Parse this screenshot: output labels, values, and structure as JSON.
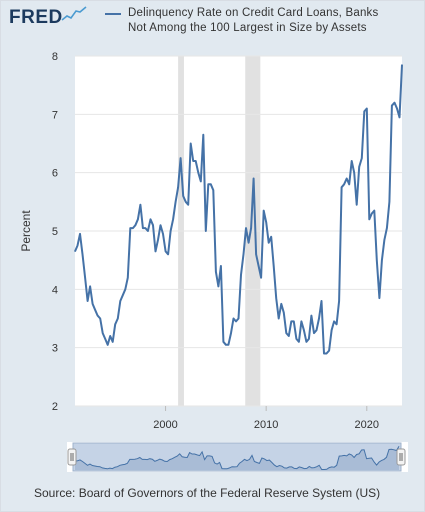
{
  "header": {
    "logo_text": "FRED",
    "legend_label_line1": "Delinquency Rate on Credit Card Loans, Banks",
    "legend_label_line2": "Not Among the 100 Largest in Size by Assets"
  },
  "footer": {
    "source": "Source: Board of Governors of the Federal Reserve System (US)"
  },
  "colors": {
    "series": "#4572a7",
    "recession": "#e1e1e1",
    "frame": "#e1e9f0",
    "brand": "#1c3a5e"
  },
  "chart_data": {
    "type": "line",
    "ylabel": "Percent",
    "xlabel": "",
    "title": "",
    "xlim": [
      1991.0,
      2023.5
    ],
    "ylim": [
      2,
      8
    ],
    "yticks": [
      "2",
      "3",
      "4",
      "5",
      "6",
      "7",
      "8"
    ],
    "xticks": [
      {
        "value": 2000,
        "label": "2000"
      },
      {
        "value": 2010,
        "label": "2010"
      },
      {
        "value": 2020,
        "label": "2020"
      }
    ],
    "recessions": [
      [
        2001.25,
        2001.83
      ],
      [
        2007.92,
        2009.42
      ]
    ],
    "series": [
      {
        "name": "Delinquency Rate on Credit Card Loans, Banks Not Among the 100 Largest in Size by Assets",
        "points": [
          [
            1991.0,
            4.65
          ],
          [
            1991.25,
            4.75
          ],
          [
            1991.5,
            4.95
          ],
          [
            1991.75,
            4.6
          ],
          [
            1992.0,
            4.2
          ],
          [
            1992.25,
            3.8
          ],
          [
            1992.5,
            4.05
          ],
          [
            1992.75,
            3.75
          ],
          [
            1993.0,
            3.65
          ],
          [
            1993.25,
            3.55
          ],
          [
            1993.5,
            3.5
          ],
          [
            1993.75,
            3.25
          ],
          [
            1994.0,
            3.15
          ],
          [
            1994.25,
            3.05
          ],
          [
            1994.5,
            3.2
          ],
          [
            1994.75,
            3.1
          ],
          [
            1995.0,
            3.4
          ],
          [
            1995.25,
            3.5
          ],
          [
            1995.5,
            3.8
          ],
          [
            1995.75,
            3.9
          ],
          [
            1996.0,
            4.0
          ],
          [
            1996.25,
            4.2
          ],
          [
            1996.5,
            5.05
          ],
          [
            1996.75,
            5.05
          ],
          [
            1997.0,
            5.1
          ],
          [
            1997.25,
            5.2
          ],
          [
            1997.5,
            5.45
          ],
          [
            1997.75,
            5.05
          ],
          [
            1998.0,
            5.05
          ],
          [
            1998.25,
            5.0
          ],
          [
            1998.5,
            5.2
          ],
          [
            1998.75,
            5.1
          ],
          [
            1999.0,
            4.65
          ],
          [
            1999.25,
            4.85
          ],
          [
            1999.5,
            5.1
          ],
          [
            1999.75,
            4.95
          ],
          [
            2000.0,
            4.65
          ],
          [
            2000.25,
            4.6
          ],
          [
            2000.5,
            5.0
          ],
          [
            2000.75,
            5.2
          ],
          [
            2001.0,
            5.5
          ],
          [
            2001.25,
            5.75
          ],
          [
            2001.5,
            6.25
          ],
          [
            2001.75,
            5.6
          ],
          [
            2002.0,
            5.5
          ],
          [
            2002.25,
            5.45
          ],
          [
            2002.5,
            6.5
          ],
          [
            2002.75,
            6.2
          ],
          [
            2003.0,
            6.2
          ],
          [
            2003.25,
            6.0
          ],
          [
            2003.5,
            5.85
          ],
          [
            2003.75,
            6.65
          ],
          [
            2004.0,
            5.0
          ],
          [
            2004.25,
            5.8
          ],
          [
            2004.5,
            5.8
          ],
          [
            2004.75,
            5.7
          ],
          [
            2005.0,
            4.3
          ],
          [
            2005.25,
            4.05
          ],
          [
            2005.5,
            4.4
          ],
          [
            2005.75,
            3.1
          ],
          [
            2006.0,
            3.05
          ],
          [
            2006.25,
            3.05
          ],
          [
            2006.5,
            3.25
          ],
          [
            2006.75,
            3.5
          ],
          [
            2007.0,
            3.45
          ],
          [
            2007.25,
            3.5
          ],
          [
            2007.5,
            4.25
          ],
          [
            2007.75,
            4.6
          ],
          [
            2008.0,
            5.05
          ],
          [
            2008.25,
            4.8
          ],
          [
            2008.5,
            5.05
          ],
          [
            2008.75,
            5.9
          ],
          [
            2009.0,
            4.6
          ],
          [
            2009.25,
            4.4
          ],
          [
            2009.5,
            4.2
          ],
          [
            2009.75,
            5.35
          ],
          [
            2010.0,
            5.15
          ],
          [
            2010.25,
            4.8
          ],
          [
            2010.5,
            4.9
          ],
          [
            2010.75,
            4.4
          ],
          [
            2011.0,
            3.85
          ],
          [
            2011.25,
            3.5
          ],
          [
            2011.5,
            3.75
          ],
          [
            2011.75,
            3.6
          ],
          [
            2012.0,
            3.25
          ],
          [
            2012.25,
            3.2
          ],
          [
            2012.5,
            3.45
          ],
          [
            2012.75,
            3.45
          ],
          [
            2013.0,
            3.15
          ],
          [
            2013.25,
            3.1
          ],
          [
            2013.5,
            3.45
          ],
          [
            2013.75,
            3.3
          ],
          [
            2014.0,
            3.1
          ],
          [
            2014.25,
            3.15
          ],
          [
            2014.5,
            3.55
          ],
          [
            2014.75,
            3.25
          ],
          [
            2015.0,
            3.3
          ],
          [
            2015.25,
            3.5
          ],
          [
            2015.5,
            3.8
          ],
          [
            2015.75,
            2.9
          ],
          [
            2016.0,
            2.9
          ],
          [
            2016.25,
            2.95
          ],
          [
            2016.5,
            3.3
          ],
          [
            2016.75,
            3.45
          ],
          [
            2017.0,
            3.4
          ],
          [
            2017.25,
            3.8
          ],
          [
            2017.5,
            5.75
          ],
          [
            2017.75,
            5.8
          ],
          [
            2018.0,
            5.9
          ],
          [
            2018.25,
            5.8
          ],
          [
            2018.5,
            6.2
          ],
          [
            2018.75,
            6.0
          ],
          [
            2019.0,
            5.45
          ],
          [
            2019.25,
            6.1
          ],
          [
            2019.5,
            6.25
          ],
          [
            2019.75,
            7.05
          ],
          [
            2020.0,
            7.1
          ],
          [
            2020.25,
            5.2
          ],
          [
            2020.5,
            5.3
          ],
          [
            2020.75,
            5.35
          ],
          [
            2021.0,
            4.5
          ],
          [
            2021.25,
            3.85
          ],
          [
            2021.5,
            4.5
          ],
          [
            2021.75,
            4.85
          ],
          [
            2022.0,
            5.05
          ],
          [
            2022.25,
            5.5
          ],
          [
            2022.5,
            7.15
          ],
          [
            2022.75,
            7.2
          ],
          [
            2023.0,
            7.1
          ],
          [
            2023.25,
            6.95
          ],
          [
            2023.5,
            7.85
          ]
        ]
      }
    ]
  }
}
